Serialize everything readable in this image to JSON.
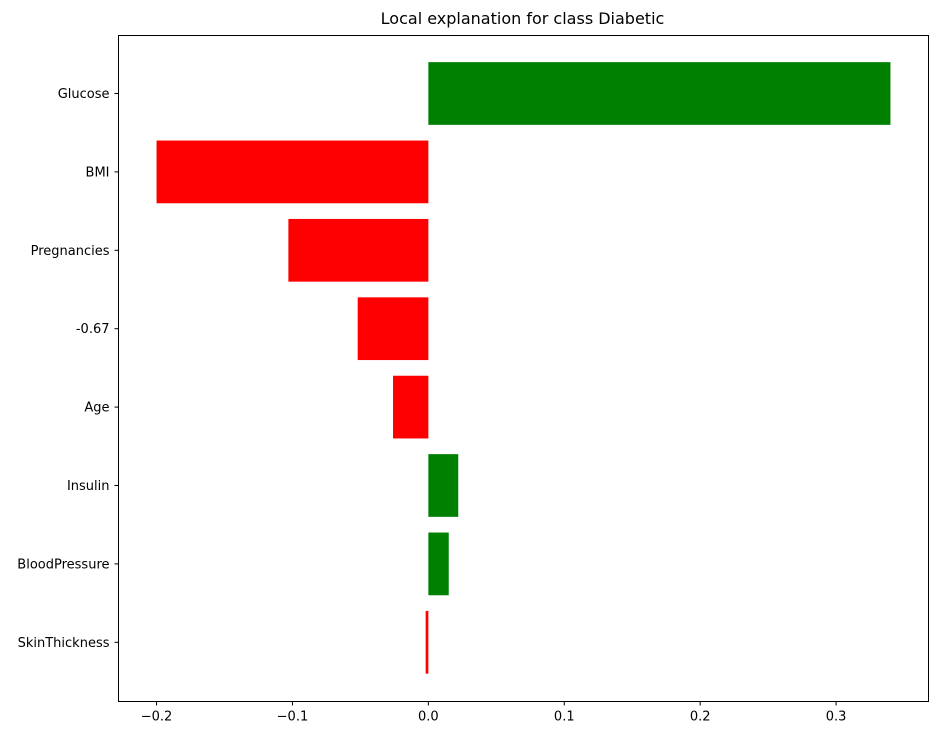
{
  "chart_data": {
    "type": "bar",
    "orientation": "horizontal",
    "title": "Local explanation for class Diabetic",
    "xlabel": "",
    "ylabel": "",
    "categories": [
      "Glucose",
      "BMI",
      "Pregnancies",
      "-0.67",
      "Age",
      "Insulin",
      "BloodPressure",
      "SkinThickness"
    ],
    "values": [
      0.34,
      -0.2,
      -0.103,
      -0.052,
      -0.026,
      0.022,
      0.015,
      -0.002
    ],
    "xlim": [
      -0.228,
      0.368
    ],
    "x_ticks": [
      -0.2,
      -0.1,
      0.0,
      0.1,
      0.2,
      0.3
    ],
    "x_tick_labels": [
      "−0.2",
      "−0.1",
      "0.0",
      "0.1",
      "0.2",
      "0.3"
    ],
    "grid": false,
    "colors": {
      "positive": "#008000",
      "negative": "#ff0000",
      "axes": "#000000"
    }
  }
}
